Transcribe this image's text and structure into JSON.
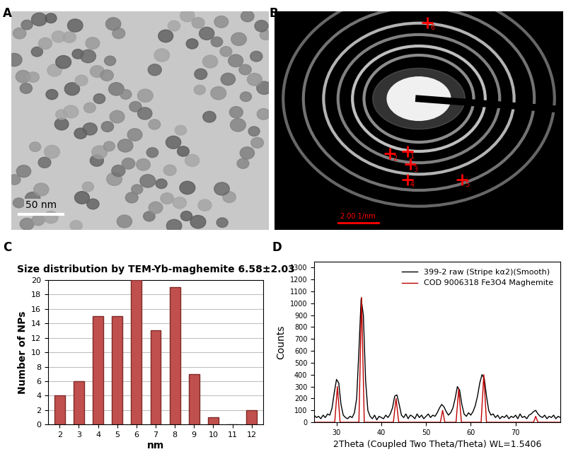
{
  "panel_labels": [
    "A",
    "B",
    "C",
    "D"
  ],
  "images": {
    "A": {
      "scale_bar": "50 nm"
    },
    "B": {
      "scale_bar": "2.00 1/nm",
      "markers": [
        "1",
        "2",
        "3",
        "4",
        "5",
        "6"
      ]
    }
  },
  "chart_data": [
    {
      "type": "bar",
      "title": "Size distribution by TEM-Yb-maghemite 6.58±2.03",
      "xlabel": "nm",
      "ylabel": "Number of NPs",
      "categories": [
        "2",
        "3",
        "4",
        "5",
        "6",
        "7",
        "8",
        "9",
        "10",
        "11",
        "12"
      ],
      "values": [
        4,
        6,
        15,
        15,
        20,
        13,
        19,
        7,
        1,
        0,
        2
      ],
      "color": "#c0504d",
      "ylim": [
        0,
        20
      ],
      "yticks": [
        0,
        2,
        4,
        6,
        8,
        10,
        12,
        14,
        16,
        18,
        20
      ],
      "grid": true
    },
    {
      "type": "line",
      "xlabel": "2Theta (Coupled Two Theta/Theta) WL=1.5406",
      "ylabel": "Counts",
      "xlim": [
        25,
        80
      ],
      "xticks": [
        30,
        40,
        50,
        60,
        70
      ],
      "ylim": [
        0,
        1350
      ],
      "yticks": [
        0,
        100,
        200,
        300,
        400,
        500,
        600,
        700,
        800,
        900,
        1000,
        1100,
        1200,
        1300
      ],
      "legend": "upper right",
      "series": [
        {
          "name": "399-2 raw (Stripe kα2)(Smooth)",
          "color": "#000000",
          "x": [
            25,
            25.5,
            26,
            26.5,
            27,
            27.5,
            28,
            28.5,
            29,
            29.5,
            30,
            30.5,
            31,
            31.5,
            32,
            32.5,
            33,
            33.5,
            34,
            34.5,
            35,
            35.5,
            36,
            36.5,
            37,
            37.5,
            38,
            38.5,
            39,
            39.5,
            40,
            40.5,
            41,
            41.5,
            42,
            42.5,
            43,
            43.5,
            44,
            44.5,
            45,
            45.5,
            46,
            46.5,
            47,
            47.5,
            48,
            48.5,
            49,
            49.5,
            50,
            50.5,
            51,
            51.5,
            52,
            52.5,
            53,
            53.5,
            54,
            54.5,
            55,
            55.5,
            56,
            56.5,
            57,
            57.5,
            58,
            58.5,
            59,
            59.5,
            60,
            60.5,
            61,
            61.5,
            62,
            62.5,
            63,
            63.5,
            64,
            64.5,
            65,
            65.5,
            66,
            66.5,
            67,
            67.5,
            68,
            68.5,
            69,
            69.5,
            70,
            70.5,
            71,
            71.5,
            72,
            72.5,
            73,
            73.5,
            74,
            74.5,
            75,
            75.5,
            76,
            76.5,
            77,
            77.5,
            78,
            78.5,
            79,
            79.5,
            80
          ],
          "values": [
            60,
            40,
            50,
            30,
            60,
            40,
            70,
            60,
            120,
            250,
            360,
            330,
            150,
            60,
            40,
            30,
            50,
            40,
            80,
            200,
            600,
            1040,
            900,
            350,
            100,
            50,
            30,
            60,
            20,
            50,
            40,
            30,
            60,
            40,
            70,
            120,
            220,
            230,
            150,
            60,
            40,
            70,
            30,
            60,
            50,
            30,
            70,
            40,
            60,
            30,
            50,
            70,
            40,
            60,
            50,
            80,
            120,
            150,
            130,
            90,
            60,
            80,
            120,
            200,
            300,
            270,
            150,
            70,
            50,
            80,
            60,
            90,
            140,
            220,
            330,
            400,
            370,
            220,
            100,
            60,
            70,
            40,
            60,
            30,
            50,
            40,
            60,
            30,
            50,
            40,
            60,
            30,
            70,
            40,
            50,
            30,
            60,
            70,
            90,
            100,
            70,
            50,
            40,
            60,
            30,
            50,
            40,
            60,
            30,
            50,
            40
          ]
        },
        {
          "name": "COD 9006318 Fe3O4 Maghemite",
          "color": "#c00000",
          "x": [
            25,
            29.6,
            30.2,
            30.8,
            35.0,
            35.6,
            36.2,
            42.7,
            43.3,
            43.9,
            53.2,
            53.7,
            54.2,
            56.7,
            57.3,
            57.9,
            62.3,
            62.9,
            63.5,
            74.0,
            74.5,
            75.0,
            80
          ],
          "values": [
            0,
            0,
            300,
            0,
            0,
            1050,
            0,
            0,
            200,
            0,
            0,
            100,
            0,
            0,
            280,
            0,
            0,
            400,
            0,
            0,
            50,
            0,
            0
          ]
        }
      ]
    }
  ]
}
